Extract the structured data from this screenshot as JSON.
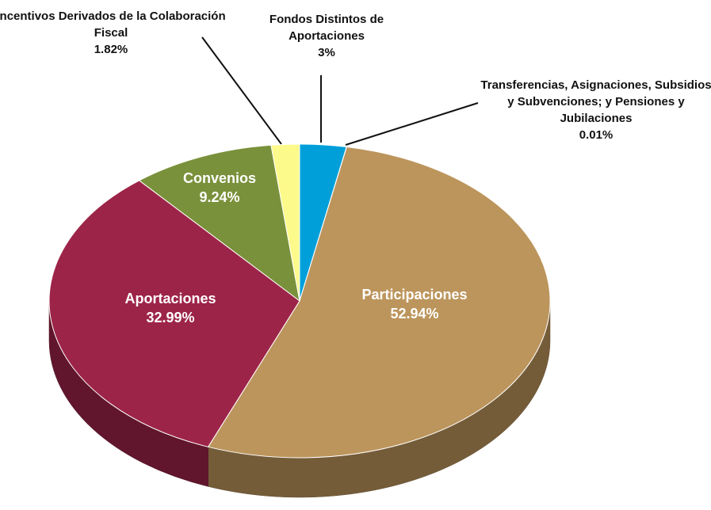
{
  "chart_data": {
    "type": "pie3d",
    "categories": [
      "Fondos Distintos de Aportaciones",
      "Transferencias, Asignaciones, Subsidios y Subvenciones;  y Pensiones y Jubilaciones",
      "Participaciones",
      "Aportaciones",
      "Convenios",
      "Incentivos Derivados de la Colaboración Fiscal"
    ],
    "values": [
      3,
      0.01,
      52.94,
      32.99,
      9.24,
      1.82
    ],
    "value_labels": [
      "3%",
      "0.01%",
      "52.94%",
      "32.99%",
      "9.24%",
      "1.82%"
    ],
    "colors": [
      "#009fda",
      "#c9a46a",
      "#bc955c",
      "#9d2449",
      "#7a913b",
      "#fdfa8c"
    ]
  }
}
